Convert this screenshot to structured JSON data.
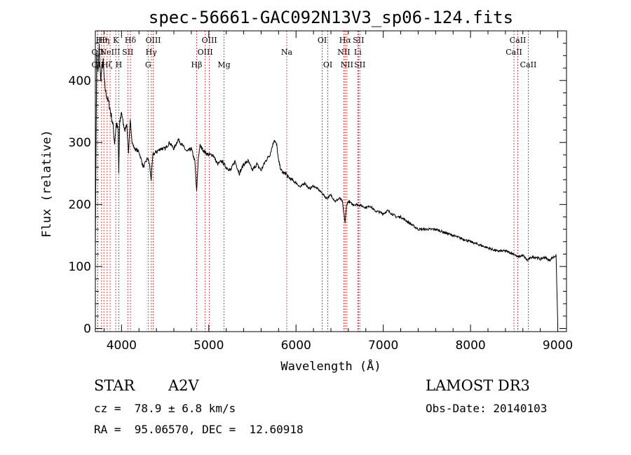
{
  "chart_data": {
    "type": "line",
    "title": "spec-56661-GAC092N13V3_sp06-124.fits",
    "xlabel": "Wavelength (Å)",
    "ylabel": "Flux (relative)",
    "xlim": [
      3700,
      9100
    ],
    "ylim": [
      -5,
      480
    ],
    "xticks": [
      4000,
      5000,
      6000,
      7000,
      8000,
      9000
    ],
    "yticks": [
      0,
      100,
      200,
      300,
      400
    ],
    "series": [
      {
        "name": "flux",
        "x": [
          3700,
          3715,
          3730,
          3745,
          3760,
          3775,
          3790,
          3805,
          3820,
          3840,
          3860,
          3880,
          3900,
          3920,
          3940,
          3960,
          3968,
          3980,
          4000,
          4020,
          4040,
          4060,
          4080,
          4100,
          4120,
          4150,
          4200,
          4250,
          4300,
          4320,
          4340,
          4360,
          4400,
          4450,
          4500,
          4550,
          4600,
          4650,
          4700,
          4750,
          4800,
          4840,
          4861,
          4880,
          4900,
          4950,
          5000,
          5050,
          5100,
          5150,
          5200,
          5250,
          5300,
          5350,
          5400,
          5450,
          5500,
          5550,
          5600,
          5650,
          5700,
          5750,
          5780,
          5800,
          5830,
          5860,
          5890,
          5900,
          5950,
          6000,
          6050,
          6100,
          6150,
          6200,
          6250,
          6300,
          6350,
          6400,
          6450,
          6500,
          6530,
          6563,
          6580,
          6600,
          6650,
          6700,
          6750,
          6800,
          6850,
          6900,
          6950,
          7000,
          7050,
          7100,
          7150,
          7200,
          7300,
          7400,
          7500,
          7600,
          7700,
          7800,
          7900,
          8000,
          8100,
          8200,
          8300,
          8400,
          8500,
          8540,
          8600,
          8650,
          8700,
          8750,
          8800,
          8850,
          8900,
          8950,
          8980,
          9000
        ],
        "y": [
          135,
          440,
          410,
          455,
          400,
          420,
          430,
          395,
          380,
          370,
          360,
          345,
          330,
          300,
          330,
          320,
          250,
          330,
          350,
          330,
          320,
          330,
          280,
          340,
          300,
          290,
          285,
          260,
          275,
          265,
          240,
          280,
          285,
          290,
          290,
          300,
          290,
          305,
          295,
          285,
          290,
          270,
          220,
          275,
          295,
          285,
          280,
          280,
          265,
          270,
          260,
          255,
          270,
          250,
          265,
          270,
          255,
          265,
          255,
          270,
          280,
          305,
          295,
          270,
          255,
          250,
          250,
          245,
          240,
          235,
          228,
          235,
          225,
          230,
          225,
          218,
          210,
          215,
          205,
          210,
          205,
          170,
          200,
          205,
          200,
          200,
          198,
          195,
          198,
          190,
          188,
          185,
          190,
          185,
          180,
          180,
          170,
          160,
          160,
          160,
          155,
          150,
          145,
          140,
          135,
          130,
          125,
          125,
          120,
          115,
          118,
          110,
          115,
          115,
          112,
          115,
          110,
          115,
          118,
          5
        ]
      }
    ],
    "line_markers": [
      {
        "label": "OII",
        "x": 3727,
        "row": 3
      },
      {
        "label": "OII",
        "x": 3727,
        "row": 2
      },
      {
        "label": "Hθ",
        "x": 3771,
        "row": 1
      },
      {
        "label": "Hη",
        "x": 3798,
        "row": 1
      },
      {
        "label": "Hζ",
        "x": 3835,
        "row": 3
      },
      {
        "label": "NeIII",
        "x": 3869,
        "row": 2
      },
      {
        "label": "K",
        "x": 3934,
        "row": 1
      },
      {
        "label": "H",
        "x": 3969,
        "row": 3
      },
      {
        "label": "SII",
        "x": 4072,
        "row": 2
      },
      {
        "label": "Hδ",
        "x": 4102,
        "row": 1
      },
      {
        "label": "G",
        "x": 4305,
        "row": 3
      },
      {
        "label": "Hγ",
        "x": 4341,
        "row": 2
      },
      {
        "label": "OIII",
        "x": 4363,
        "row": 1
      },
      {
        "label": "Hβ",
        "x": 4861,
        "row": 3
      },
      {
        "label": "OIII",
        "x": 4959,
        "row": 2
      },
      {
        "label": "OIII",
        "x": 5007,
        "row": 1
      },
      {
        "label": "Mg",
        "x": 5175,
        "row": 3
      },
      {
        "label": "Na",
        "x": 5894,
        "row": 2
      },
      {
        "label": "OI",
        "x": 6300,
        "row": 1
      },
      {
        "label": "OI",
        "x": 6364,
        "row": 3
      },
      {
        "label": "NII",
        "x": 6548,
        "row": 2
      },
      {
        "label": "Hα",
        "x": 6563,
        "row": 1
      },
      {
        "label": "NII",
        "x": 6583,
        "row": 3
      },
      {
        "label": "Li",
        "x": 6708,
        "row": 2
      },
      {
        "label": "SII",
        "x": 6716,
        "row": 1
      },
      {
        "label": "SII",
        "x": 6731,
        "row": 3
      },
      {
        "label": "CaII",
        "x": 8498,
        "row": 2
      },
      {
        "label": "CaII",
        "x": 8542,
        "row": 1
      },
      {
        "label": "CaII",
        "x": 8662,
        "row": 3
      }
    ],
    "colors": {
      "spectrum": "#000000",
      "markers": "#c83232",
      "axes": "#000000"
    }
  },
  "info": {
    "object_class": "STAR",
    "subclass": "A2V",
    "survey": "LAMOST DR3",
    "velocity": "cz =  78.9 ± 6.8 km/s",
    "obs_date": "Obs-Date: 20140103",
    "coords": "RA =  95.06570, DEC =  12.60918"
  }
}
